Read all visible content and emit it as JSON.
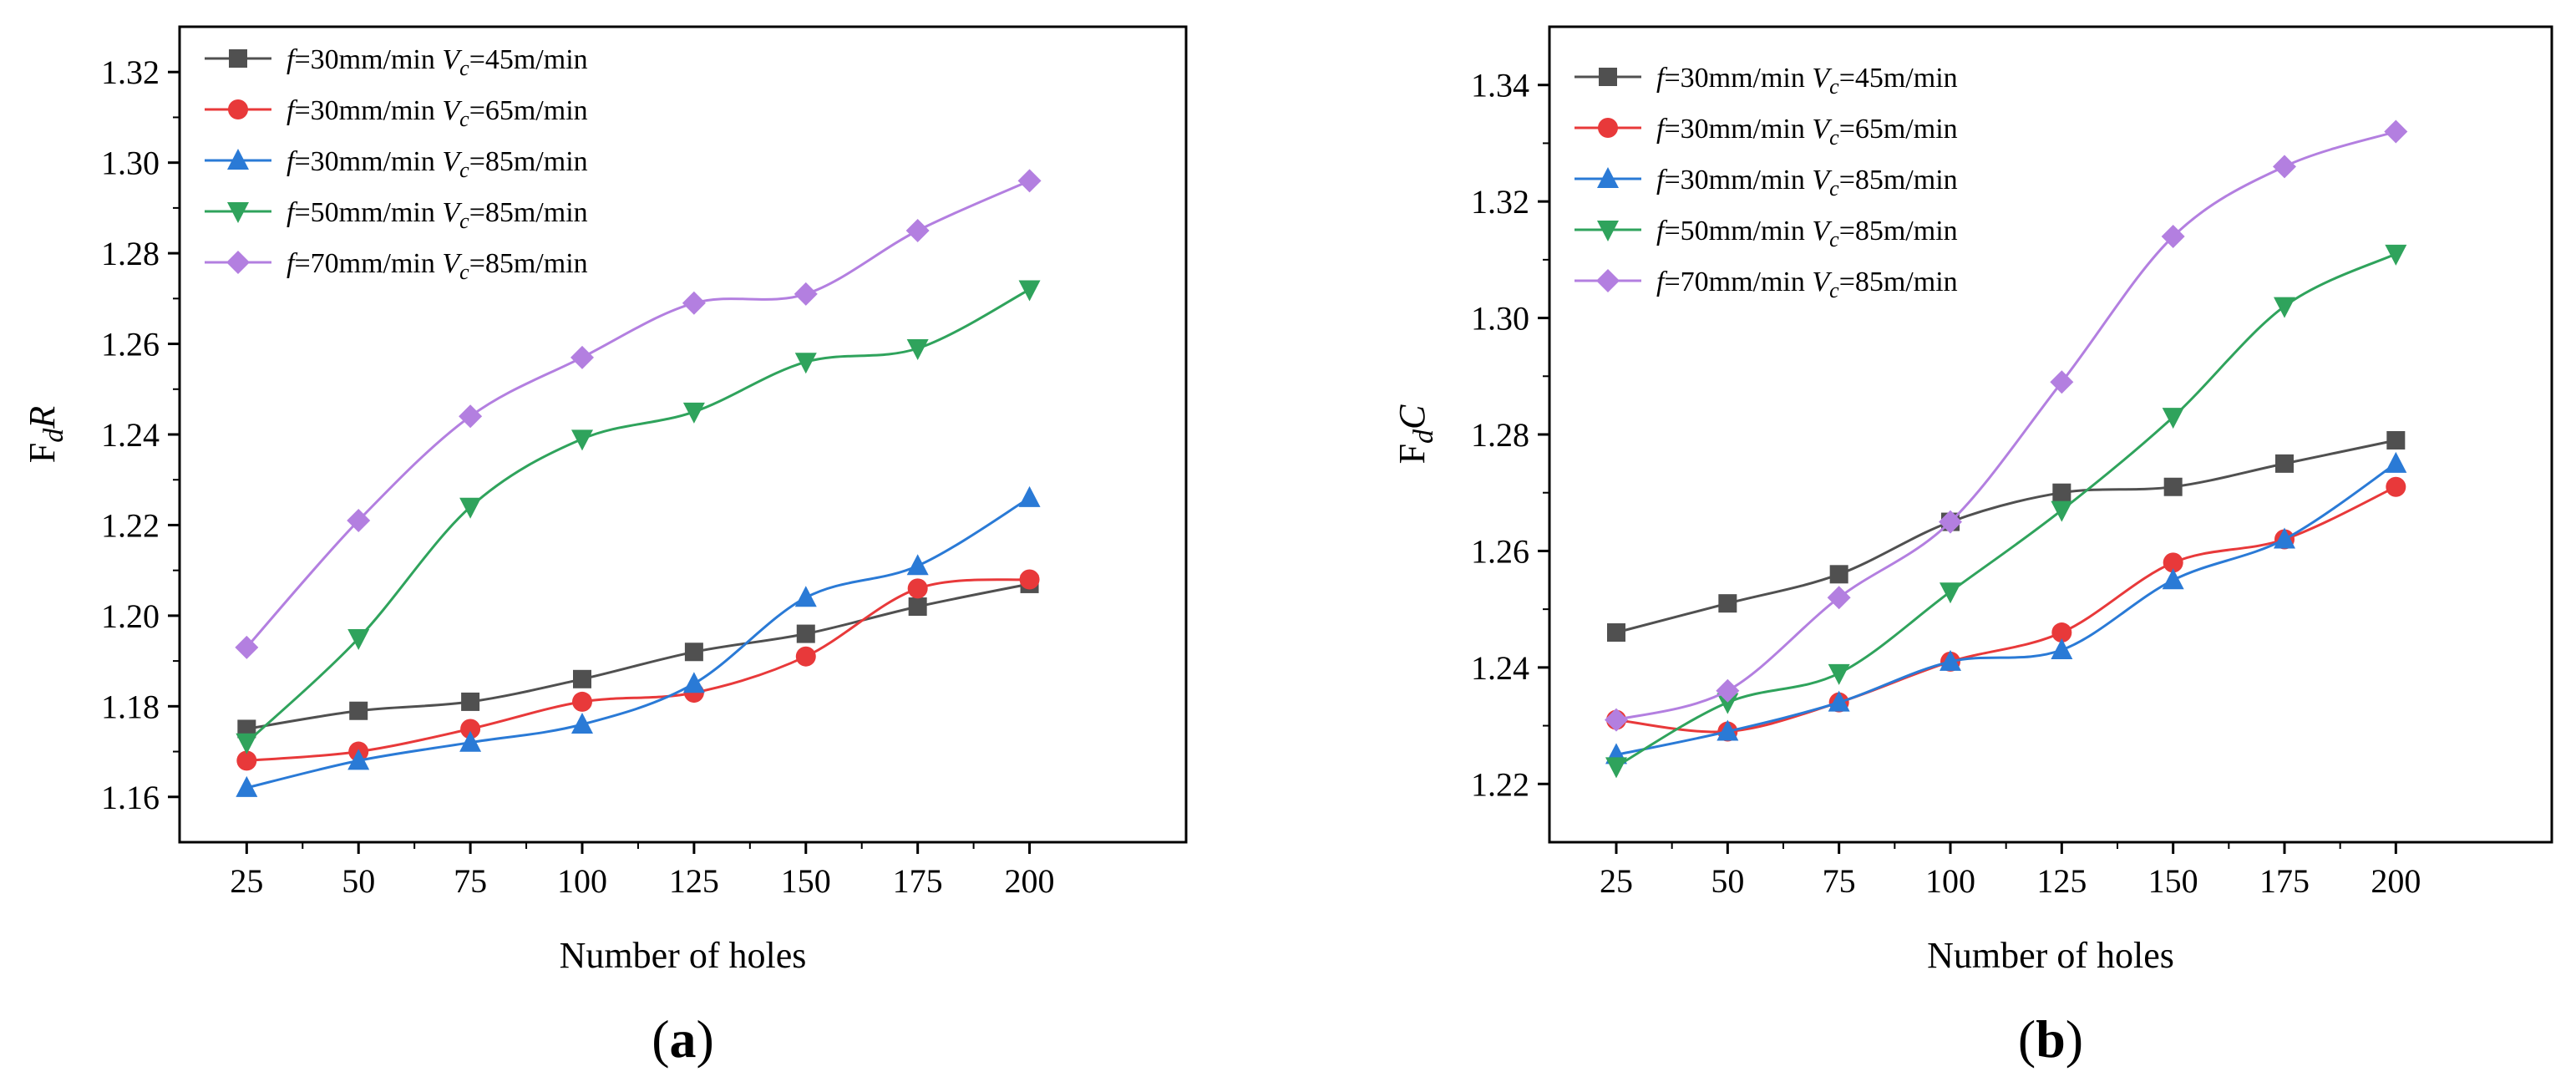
{
  "chart_data": [
    {
      "id": "a",
      "type": "line",
      "panel_label": "a",
      "xlabel": "Number of holes",
      "ylabel_main": "F",
      "ylabel_sub": "d",
      "ylabel_suffix": "R",
      "x": [
        25,
        50,
        75,
        100,
        125,
        150,
        175,
        200
      ],
      "xticks": [
        "25",
        "50",
        "75",
        "100",
        "125",
        "150",
        "175",
        "200"
      ],
      "xlim": [
        10,
        235
      ],
      "ylim": [
        1.15,
        1.33
      ],
      "yticks": [
        "1.16",
        "1.18",
        "1.20",
        "1.22",
        "1.24",
        "1.26",
        "1.28",
        "1.30",
        "1.32"
      ],
      "grid": false,
      "legend_position": "top-left",
      "series": [
        {
          "name": "f=30mm/min Vc=45m/min",
          "f_val": "=30mm/min ",
          "v_val": "=45m/min",
          "color": "#505050",
          "marker": "square",
          "values": [
            1.175,
            1.179,
            1.181,
            1.186,
            1.192,
            1.196,
            1.202,
            1.207
          ]
        },
        {
          "name": "f=30mm/min Vc=65m/min",
          "f_val": "=30mm/min ",
          "v_val": "=65m/min",
          "color": "#e8393a",
          "marker": "circle",
          "values": [
            1.168,
            1.17,
            1.175,
            1.181,
            1.183,
            1.191,
            1.206,
            1.208
          ]
        },
        {
          "name": "f=30mm/min Vc=85m/min",
          "f_val": "=30mm/min ",
          "v_val": "=85m/min",
          "color": "#2a7ad6",
          "marker": "triangle-up",
          "values": [
            1.162,
            1.168,
            1.172,
            1.176,
            1.185,
            1.204,
            1.211,
            1.226
          ]
        },
        {
          "name": "f=50mm/min Vc=85m/min",
          "f_val": "=50mm/min ",
          "v_val": "=85m/min",
          "color": "#2fa35c",
          "marker": "triangle-down",
          "values": [
            1.172,
            1.195,
            1.224,
            1.239,
            1.245,
            1.256,
            1.259,
            1.272
          ]
        },
        {
          "name": "f=70mm/min Vc=85m/min",
          "f_val": "=70mm/min ",
          "v_val": "=85m/min",
          "color": "#b37fe0",
          "marker": "diamond",
          "values": [
            1.193,
            1.221,
            1.244,
            1.257,
            1.269,
            1.271,
            1.285,
            1.296
          ]
        }
      ]
    },
    {
      "id": "b",
      "type": "line",
      "panel_label": "b",
      "xlabel": "Number of holes",
      "ylabel_main": "F",
      "ylabel_sub": "d",
      "ylabel_suffix": "C",
      "x": [
        25,
        50,
        75,
        100,
        125,
        150,
        175,
        200
      ],
      "xticks": [
        "25",
        "50",
        "75",
        "100",
        "125",
        "150",
        "175",
        "200"
      ],
      "xlim": [
        10,
        235
      ],
      "ylim": [
        1.21,
        1.35
      ],
      "yticks": [
        "1.22",
        "1.24",
        "1.26",
        "1.28",
        "1.30",
        "1.32",
        "1.34"
      ],
      "grid": false,
      "legend_position": "top-left",
      "series": [
        {
          "name": "f=30mm/min Vc=45m/min",
          "f_val": "=30mm/min ",
          "v_val": "=45m/min",
          "color": "#505050",
          "marker": "square",
          "values": [
            1.246,
            1.251,
            1.256,
            1.265,
            1.27,
            1.271,
            1.275,
            1.279
          ]
        },
        {
          "name": "f=30mm/min Vc=65m/min",
          "f_val": "=30mm/min ",
          "v_val": "=65m/min",
          "color": "#e8393a",
          "marker": "circle",
          "values": [
            1.231,
            1.229,
            1.234,
            1.241,
            1.246,
            1.258,
            1.262,
            1.271
          ]
        },
        {
          "name": "f=30mm/min Vc=85m/min",
          "f_val": "=30mm/min ",
          "v_val": "=85m/min",
          "color": "#2a7ad6",
          "marker": "triangle-up",
          "values": [
            1.225,
            1.229,
            1.234,
            1.241,
            1.243,
            1.255,
            1.262,
            1.275
          ]
        },
        {
          "name": "f=50mm/min Vc=85m/min",
          "f_val": "=50mm/min ",
          "v_val": "=85m/min",
          "color": "#2fa35c",
          "marker": "triangle-down",
          "values": [
            1.223,
            1.234,
            1.239,
            1.253,
            1.267,
            1.283,
            1.302,
            1.311
          ]
        },
        {
          "name": "f=70mm/min Vc=85m/min",
          "f_val": "=70mm/min ",
          "v_val": "=85m/min",
          "color": "#b37fe0",
          "marker": "diamond",
          "values": [
            1.231,
            1.236,
            1.252,
            1.265,
            1.289,
            1.314,
            1.326,
            1.332
          ]
        }
      ]
    }
  ],
  "legend_symbols": {
    "f": "f",
    "v": "V",
    "v_sub": "c"
  }
}
